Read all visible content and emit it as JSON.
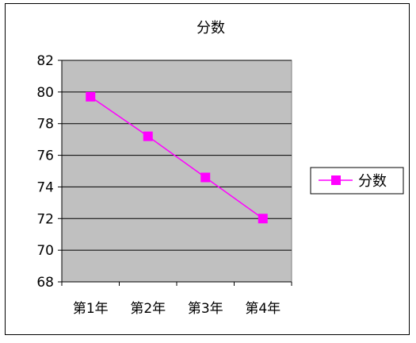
{
  "chart_data": {
    "type": "line",
    "title": "分数",
    "categories": [
      "第1年",
      "第2年",
      "第3年",
      "第4年"
    ],
    "series": [
      {
        "name": "分数",
        "values": [
          79.7,
          77.2,
          74.6,
          72.0
        ],
        "color": "#ff00ff",
        "marker": "square"
      }
    ],
    "ylim": [
      68,
      82
    ],
    "yticks": [
      68,
      70,
      72,
      74,
      76,
      78,
      80,
      82
    ],
    "grid": true,
    "plot_background": "#c0c0c0",
    "legend_position": "right"
  }
}
